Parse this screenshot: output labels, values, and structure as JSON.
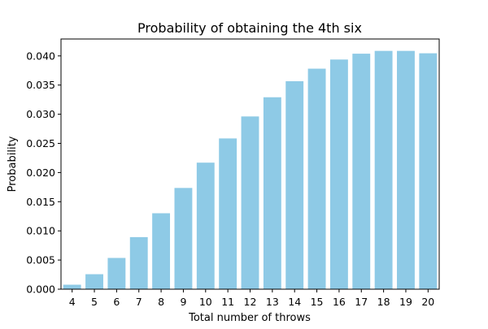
{
  "chart_data": {
    "type": "bar",
    "title": "Probability of obtaining the 4th six",
    "xlabel": "Total number of throws",
    "ylabel": "Probability",
    "categories": [
      "4",
      "5",
      "6",
      "7",
      "8",
      "9",
      "10",
      "11",
      "12",
      "13",
      "14",
      "15",
      "16",
      "17",
      "18",
      "19",
      "20"
    ],
    "values": [
      0.00077,
      0.00257,
      0.00536,
      0.00893,
      0.01302,
      0.01736,
      0.0217,
      0.02585,
      0.02962,
      0.03291,
      0.03566,
      0.03781,
      0.03938,
      0.04038,
      0.04086,
      0.04086,
      0.04045
    ],
    "ylim": [
      0,
      0.0429
    ],
    "yticks": [
      "0.000",
      "0.005",
      "0.010",
      "0.015",
      "0.020",
      "0.025",
      "0.030",
      "0.035",
      "0.040"
    ],
    "grid": false,
    "bar_color": "#8ecae6"
  }
}
